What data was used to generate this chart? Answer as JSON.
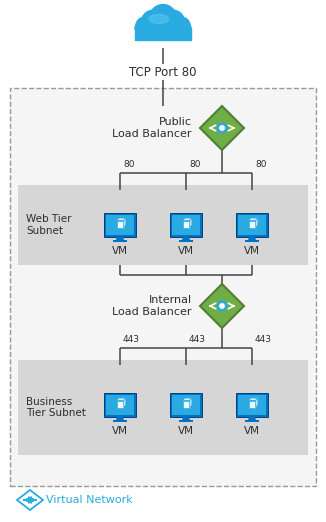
{
  "bg_color": "#ffffff",
  "vnet_box_facecolor": "#f5f5f5",
  "vnet_border_color": "#999999",
  "subnet_color": "#d6d6d6",
  "cloud_color": "#29abe2",
  "cloud_color2": "#5bc8f5",
  "lb_diamond_color": "#70ad47",
  "lb_diamond_border": "#507e32",
  "vm_body_color": "#0072c6",
  "vm_screen_color": "#29abe2",
  "line_color": "#444444",
  "text_color": "#2d2d2d",
  "vnet_label_color": "#29abe2",
  "title_tcp": "TCP Port 80",
  "label_public_lb": "Public\nLoad Balancer",
  "label_internal_lb": "Internal\nLoad Balancer",
  "label_web_subnet": "Web Tier\nSubnet",
  "label_business_subnet": "Business\nTier Subnet",
  "label_vm": "VM",
  "label_vnet": "Virtual Network",
  "port_80": "80",
  "port_443": "443",
  "figsize": [
    3.26,
    5.22
  ],
  "dpi": 100
}
